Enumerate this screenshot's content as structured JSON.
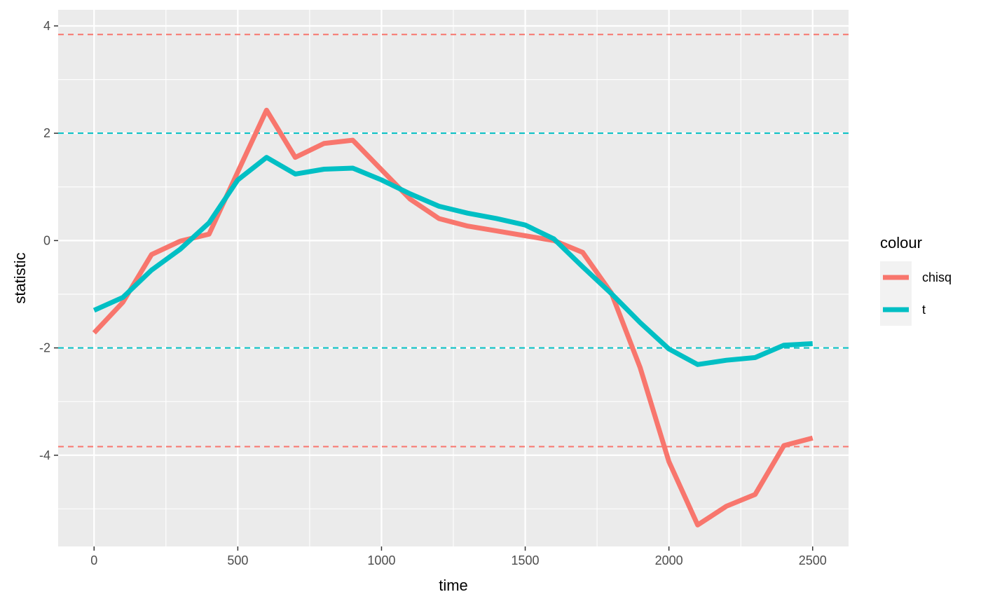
{
  "chart_data": {
    "type": "line",
    "xlabel": "time",
    "ylabel": "statistic",
    "xlim": [
      -125,
      2625
    ],
    "ylim": [
      -5.7,
      4.3
    ],
    "x_ticks": [
      0,
      500,
      1000,
      1500,
      2000,
      2500
    ],
    "x_minor": [
      250,
      750,
      1250,
      1750,
      2250
    ],
    "y_ticks": [
      -4,
      -2,
      0,
      2,
      4
    ],
    "y_minor": [
      -5,
      -3,
      -1,
      1,
      3
    ],
    "grid": true,
    "legend": {
      "title": "colour",
      "position": "right",
      "entries": [
        "chisq",
        "t"
      ]
    },
    "colors": {
      "chisq": "#f8766d",
      "t": "#00bfc4"
    },
    "x": [
      0,
      100,
      200,
      300,
      400,
      500,
      600,
      700,
      800,
      900,
      1000,
      1100,
      1200,
      1300,
      1400,
      1500,
      1600,
      1700,
      1800,
      1900,
      2000,
      2100,
      2200,
      2300,
      2400,
      2500
    ],
    "series": [
      {
        "name": "chisq",
        "color": "#f8766d",
        "values": [
          -1.72,
          -1.15,
          -0.26,
          -0.01,
          0.12,
          1.28,
          2.43,
          1.55,
          1.81,
          1.87,
          1.32,
          0.77,
          0.41,
          0.27,
          0.18,
          0.09,
          0.0,
          -0.22,
          -0.98,
          -2.37,
          -4.12,
          -5.3,
          -4.95,
          -4.73,
          -3.82,
          -3.68
        ]
      },
      {
        "name": "t",
        "color": "#00bfc4",
        "values": [
          -1.3,
          -1.06,
          -0.55,
          -0.16,
          0.33,
          1.13,
          1.55,
          1.24,
          1.33,
          1.35,
          1.13,
          0.87,
          0.64,
          0.51,
          0.41,
          0.29,
          0.03,
          -0.49,
          -0.99,
          -1.53,
          -2.02,
          -2.31,
          -2.23,
          -2.18,
          -1.95,
          -1.92
        ]
      }
    ],
    "reference_lines": [
      {
        "y": 3.84,
        "color": "#f8766d",
        "style": "dashed"
      },
      {
        "y": -3.84,
        "color": "#f8766d",
        "style": "dashed"
      },
      {
        "y": 2,
        "color": "#00bfc4",
        "style": "dashed"
      },
      {
        "y": -2,
        "color": "#00bfc4",
        "style": "dashed"
      }
    ]
  }
}
